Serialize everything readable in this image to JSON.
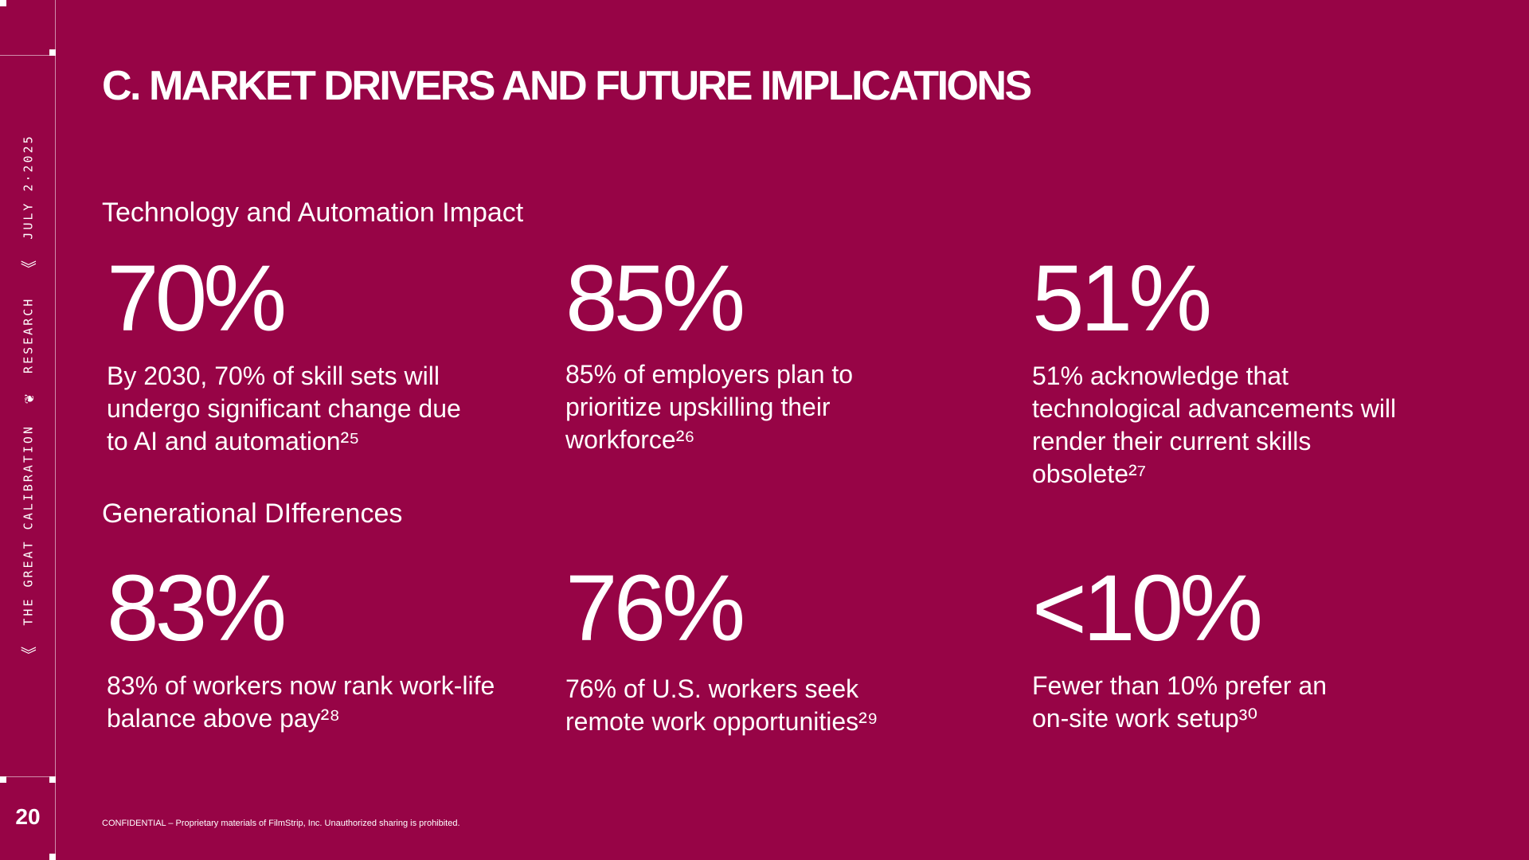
{
  "sidebar": {
    "label_title": "THE GREAT CALIBRATION",
    "label_section": "RESEARCH",
    "label_date": "JULY 2·2025",
    "page_number": "20"
  },
  "header": {
    "title": "C. MARKET DRIVERS AND FUTURE IMPLICATIONS"
  },
  "sections": [
    {
      "heading": "Technology and Automation Impact",
      "stats": [
        {
          "value": "70%",
          "text": "By 2030, 70% of skill sets will undergo significant change due to AI and automation²⁵"
        },
        {
          "value": "85%",
          "text": "85% of employers plan to prioritize upskilling their workforce²⁶"
        },
        {
          "value": "51%",
          "text": "51% acknowledge that technological advancements will render their current skills obsolete²⁷"
        }
      ]
    },
    {
      "heading": "Generational DIfferences",
      "stats": [
        {
          "value": "83%",
          "text": "83% of workers now rank work-life balance above pay²⁸"
        },
        {
          "value": "76%",
          "text": "76% of U.S. workers seek remote work opportunities²⁹"
        },
        {
          "value": "<10%",
          "text": "Fewer than 10% prefer an on-site work setup³⁰"
        }
      ]
    }
  ],
  "footer": {
    "text": "CONFIDENTIAL – Proprietary materials of FilmStrip, Inc. Unauthorized sharing is prohibited."
  },
  "colors": {
    "background": "#970446",
    "text": "#ffffff"
  }
}
